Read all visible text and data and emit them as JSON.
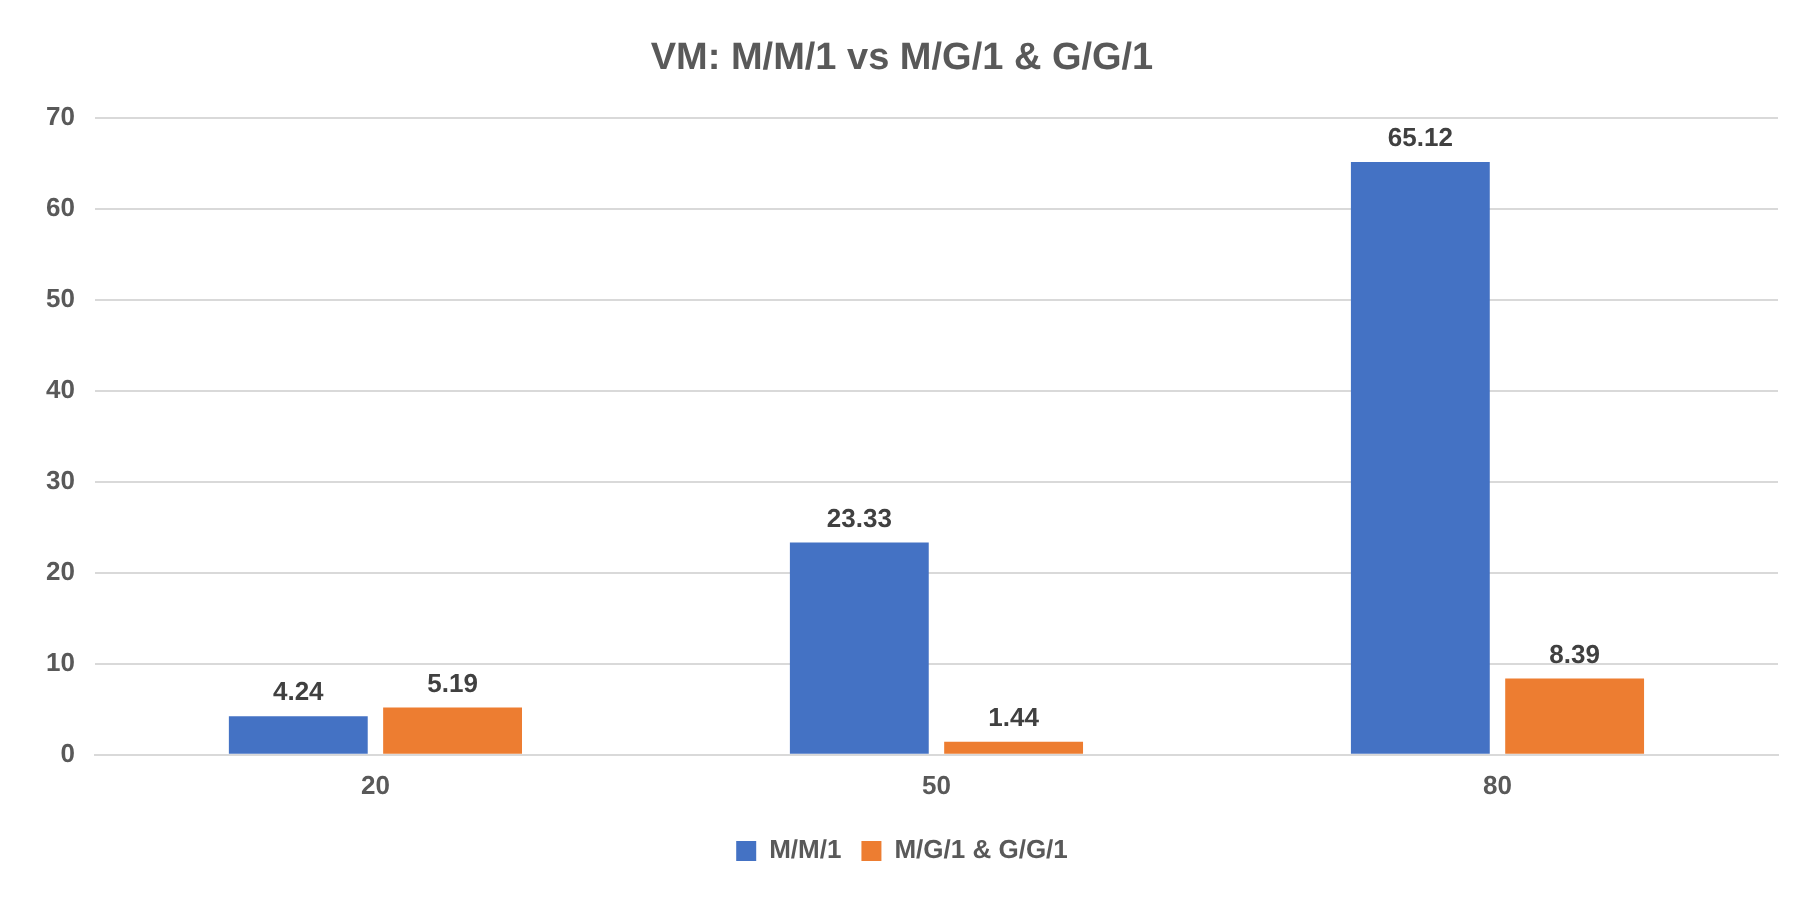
{
  "chart_data": {
    "type": "bar",
    "title": "VM: M/M/1 vs M/G/1 & G/G/1",
    "categories": [
      "20",
      "50",
      "80"
    ],
    "series": [
      {
        "name": "M/M/1",
        "color": "#4472c4",
        "values": [
          4.24,
          23.33,
          65.12
        ]
      },
      {
        "name": "M/G/1 & G/G/1",
        "color": "#ed7d31",
        "values": [
          5.19,
          1.44,
          8.39
        ]
      }
    ],
    "ylim": [
      0,
      70
    ],
    "yticks": [
      0,
      10,
      20,
      30,
      40,
      50,
      60,
      70
    ],
    "grid": "y",
    "legend": "bottom",
    "data_labels": true
  }
}
